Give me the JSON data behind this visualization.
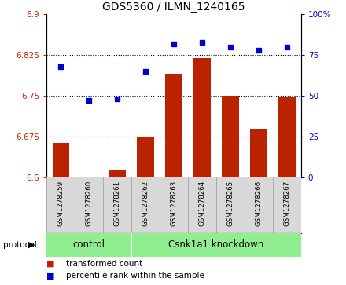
{
  "title": "GDS5360 / ILMN_1240165",
  "samples": [
    "GSM1278259",
    "GSM1278260",
    "GSM1278261",
    "GSM1278262",
    "GSM1278263",
    "GSM1278264",
    "GSM1278265",
    "GSM1278266",
    "GSM1278267"
  ],
  "bar_values": [
    6.663,
    6.602,
    6.615,
    6.675,
    6.79,
    6.82,
    6.75,
    6.69,
    6.748
  ],
  "dot_values": [
    68,
    47,
    48,
    65,
    82,
    83,
    80,
    78,
    80
  ],
  "bar_color": "#bb2200",
  "dot_color": "#0000cc",
  "bar_bottom": 6.6,
  "ylim_left": [
    6.6,
    6.9
  ],
  "ylim_right": [
    0,
    100
  ],
  "yticks_left": [
    6.6,
    6.675,
    6.75,
    6.825,
    6.9
  ],
  "ytick_labels_left": [
    "6.6",
    "6.675",
    "6.75",
    "6.825",
    "6.9"
  ],
  "yticks_right": [
    0,
    25,
    50,
    75,
    100
  ],
  "ytick_labels_right": [
    "0",
    "25",
    "50",
    "75",
    "100%"
  ],
  "hlines": [
    6.675,
    6.75,
    6.825
  ],
  "control_samples": 3,
  "protocol_labels": [
    "control",
    "Csnk1a1 knockdown"
  ],
  "protocol_color": "#90ee90",
  "label_bar": "transformed count",
  "label_dot": "percentile rank within the sample",
  "bg_color": "#d8d8d8",
  "title_fontsize": 10,
  "tick_fontsize": 7.5
}
